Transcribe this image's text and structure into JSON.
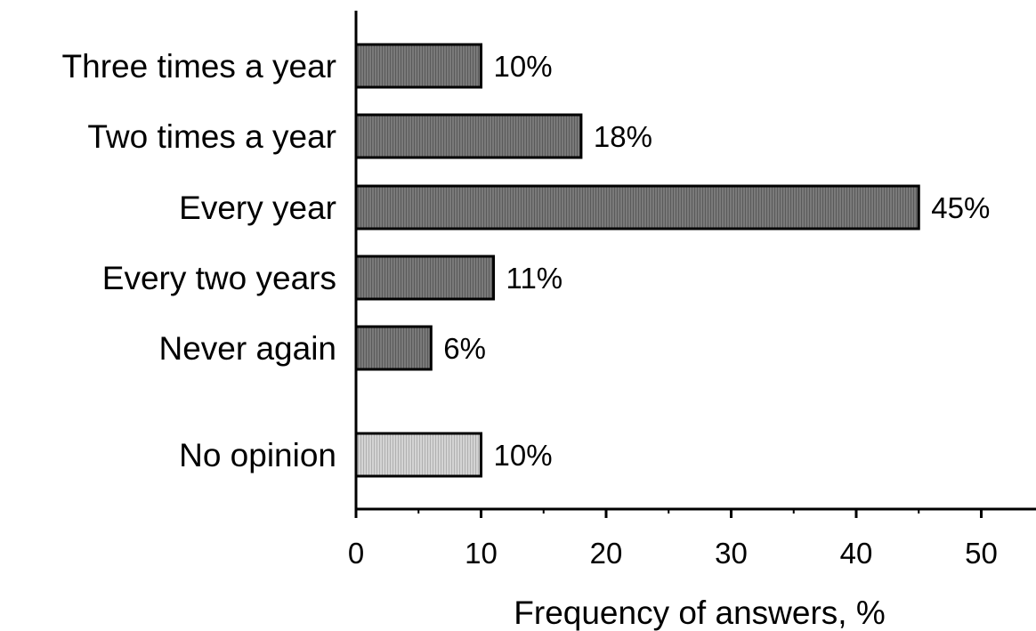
{
  "chart_data": {
    "type": "bar",
    "orientation": "horizontal",
    "categories": [
      "Three times a year",
      "Two times a year",
      "Every year",
      "Every two years",
      "Never again",
      "No opinion"
    ],
    "values": [
      10,
      18,
      45,
      11,
      6,
      10
    ],
    "value_labels": [
      "10%",
      "18%",
      "45%",
      "11%",
      "6%",
      "10%"
    ],
    "bar_colors": [
      "#6e6e6e",
      "#6e6e6e",
      "#6e6e6e",
      "#6e6e6e",
      "#6e6e6e",
      "#c8c8c8"
    ],
    "xlabel": "Frequency of answers, %",
    "ylabel": "",
    "xlim": [
      0,
      55
    ],
    "xticks": [
      0,
      10,
      20,
      30,
      40,
      50
    ],
    "xtick_labels": [
      "0",
      "10",
      "20",
      "30",
      "40",
      "50"
    ],
    "grid": false,
    "legend": "none"
  }
}
